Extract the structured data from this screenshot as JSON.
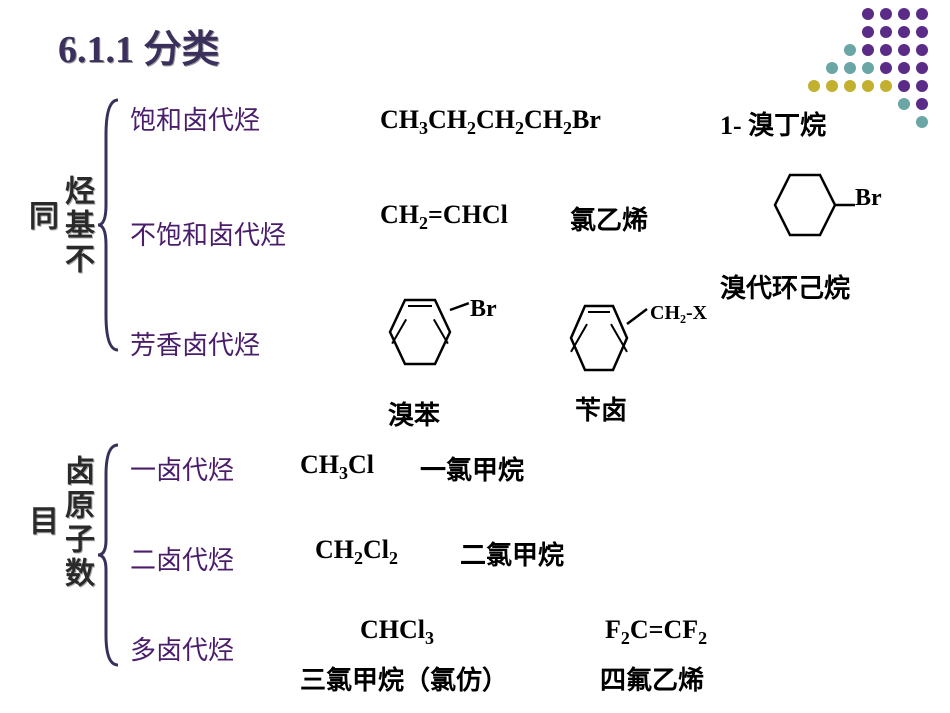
{
  "title": "6.1.1  分类",
  "dot_grid": {
    "rows": 7,
    "cols": 7,
    "colors": [
      [
        "",
        "",
        "",
        "#5b2c87",
        "#5b2c87",
        "#5b2c87",
        "#5b2c87"
      ],
      [
        "",
        "",
        "",
        "#5b2c87",
        "#5b2c87",
        "#5b2c87",
        "#5b2c87"
      ],
      [
        "",
        "",
        "#6aa6a6",
        "#5b2c87",
        "#5b2c87",
        "#5b2c87",
        "#5b2c87"
      ],
      [
        "",
        "#6aa6a6",
        "#6aa6a6",
        "#6aa6a6",
        "#5b2c87",
        "#5b2c87",
        "#5b2c87"
      ],
      [
        "#c2b02e",
        "#c2b02e",
        "#c2b02e",
        "#c2b02e",
        "#c2b02e",
        "#5b2c87",
        "#5b2c87"
      ],
      [
        "",
        "",
        "",
        "",
        "",
        "#6aa6a6",
        "#5b2c87"
      ],
      [
        "",
        "",
        "",
        "",
        "",
        "",
        "#6aa6a6"
      ]
    ]
  },
  "group1": {
    "label_col1": "同",
    "label_col2": "烃基不",
    "items": [
      {
        "cat": "饱和卤代烃",
        "formula_html": "CH<sub>3</sub>CH<sub>2</sub>CH<sub>2</sub>CH<sub>2</sub>Br",
        "name": "1- 溴丁烷"
      },
      {
        "cat": "不饱和卤代烃",
        "formula_html": "CH<sub>2</sub>=CHCl",
        "name": "氯乙烯"
      },
      {
        "cat": "芳香卤代烃"
      }
    ],
    "cyclohexyl": {
      "label": "Br",
      "name": "溴代环己烷"
    },
    "benzene_br": {
      "label": "Br",
      "name": "溴苯"
    },
    "benzyl": {
      "label": "CH₂-X",
      "name": "苄卤"
    }
  },
  "group2": {
    "label_col1": "目",
    "label_col2": "卤原子数",
    "items": [
      {
        "cat": "一卤代烃",
        "formula_html": "CH<sub>3</sub>Cl",
        "name": "一氯甲烷"
      },
      {
        "cat": "二卤代烃",
        "formula_html": "CH<sub>2</sub>Cl<sub>2</sub>",
        "name": "二氯甲烷"
      },
      {
        "cat": "多卤代烃",
        "formula_html": "CHCl<sub>3</sub>",
        "name": "三氯甲烷（氯仿）",
        "formula2_html": "F<sub>2</sub>C=CF<sub>2</sub>",
        "name2": "四氟乙烯"
      }
    ]
  }
}
